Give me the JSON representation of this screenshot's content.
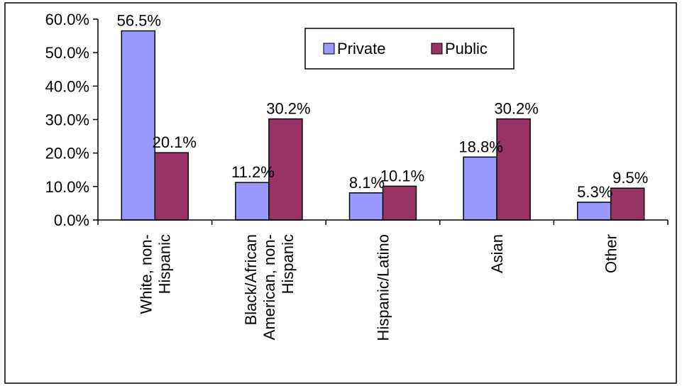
{
  "chart_data": {
    "type": "bar",
    "categories": [
      [
        "White, non-",
        "Hispanic"
      ],
      [
        "Black/African",
        "American, non-",
        "Hispanic"
      ],
      [
        "Hispanic/Latino"
      ],
      [
        "Asian"
      ],
      [
        "Other"
      ]
    ],
    "series": [
      {
        "name": "Private",
        "values": [
          56.5,
          11.2,
          8.1,
          18.8,
          5.3
        ],
        "labels": [
          "56.5%",
          "11.2%",
          "8.1%",
          "18.8%",
          "5.3%"
        ],
        "color": "#9999ff"
      },
      {
        "name": "Public",
        "values": [
          20.1,
          30.2,
          10.1,
          30.2,
          9.5
        ],
        "labels": [
          "20.1%",
          "30.2%",
          "10.1%",
          "30.2%",
          "9.5%"
        ],
        "color": "#993366"
      }
    ],
    "y_ticks": [
      "0.0%",
      "10.0%",
      "20.0%",
      "30.0%",
      "40.0%",
      "50.0%",
      "60.0%"
    ],
    "ylim": [
      0,
      60
    ],
    "legend_position": "top-right",
    "grid": false,
    "title": "",
    "xlabel": "",
    "ylabel": ""
  }
}
